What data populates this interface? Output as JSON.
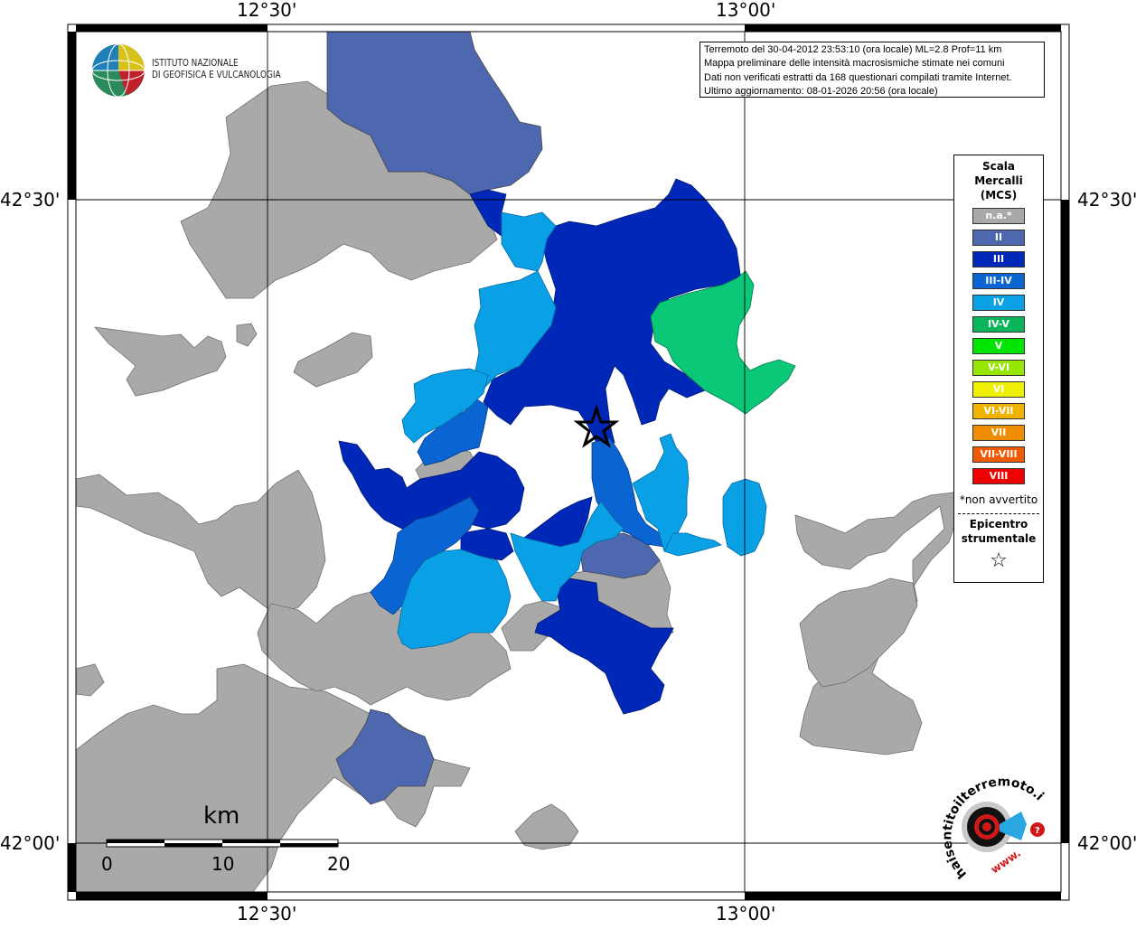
{
  "map": {
    "lon_labels": [
      "12°30'",
      "13°00'"
    ],
    "lat_labels": [
      "42°30'",
      "42°00'"
    ]
  },
  "logo": {
    "line1": "ISTITUTO NAZIONALE",
    "line2": "DI GEOFISICA E VULCANOLOGIA"
  },
  "info": {
    "line1": "Terremoto del 30-04-2012 23:53:10 (ora locale) ML=2.8 Prof=11 km",
    "line2": "Mappa preliminare delle intensità macrosismiche stimate nei comuni",
    "line3": "Dati non verificati estratti da 168 questionari compilati tramite Internet.",
    "line4": "Ultimo aggiornamento: 08-01-2026 20:56 (ora locale)"
  },
  "legend": {
    "title1": "Scala",
    "title2": "Mercalli",
    "title3": "(MCS)",
    "items": [
      {
        "label": "n.a.*",
        "color": "#a9a9a9"
      },
      {
        "label": "II",
        "color": "#4e68b0"
      },
      {
        "label": "III",
        "color": "#0028b8"
      },
      {
        "label": "III-IV",
        "color": "#0a64d2"
      },
      {
        "label": "IV",
        "color": "#0aa0e6"
      },
      {
        "label": "IV-V",
        "color": "#0ab45a"
      },
      {
        "label": "V",
        "color": "#00e600"
      },
      {
        "label": "V-VI",
        "color": "#96e600"
      },
      {
        "label": "VI",
        "color": "#f0f000"
      },
      {
        "label": "VI-VII",
        "color": "#f0b400"
      },
      {
        "label": "VII",
        "color": "#f08c00"
      },
      {
        "label": "VII-VIII",
        "color": "#f05a00"
      },
      {
        "label": "VIII",
        "color": "#f00000"
      }
    ],
    "note": "*non avvertito",
    "epicenter1": "Epicentro",
    "epicenter2": "strumentale",
    "star": "☆"
  },
  "scale_bar": {
    "unit": "km",
    "ticks": [
      "0",
      "10",
      "20"
    ]
  },
  "hsit": {
    "text": "haisentitoilterremoto.it",
    "url": "www."
  },
  "colors": {
    "na": "#a9a9a9",
    "II": "#4e68b0",
    "III": "#0028b8",
    "III-IV": "#0a64d2",
    "IV": "#0aa0e6",
    "IV-V": "#0ab45a"
  }
}
